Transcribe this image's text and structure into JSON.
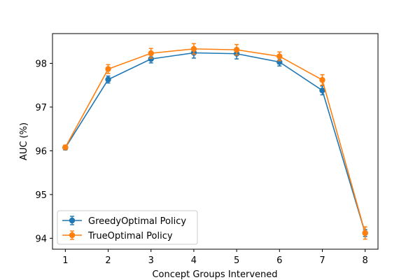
{
  "chart_data": {
    "type": "line",
    "title": "",
    "xlabel": "Concept Groups Intervened",
    "ylabel": "AUC (%)",
    "xlim": [
      0.7,
      8.3
    ],
    "ylim": [
      93.75,
      98.68
    ],
    "xticks": [
      1,
      2,
      3,
      4,
      5,
      6,
      7,
      8
    ],
    "yticks": [
      94,
      95,
      96,
      97,
      98
    ],
    "grid": false,
    "legend_position": "lower-left",
    "x": [
      1,
      2,
      3,
      4,
      5,
      6,
      7,
      8
    ],
    "series": [
      {
        "name": "GreedyOptimal Policy",
        "color": "#1f77b4",
        "marker": "circle",
        "values": [
          96.07,
          97.63,
          98.1,
          98.24,
          98.22,
          98.03,
          97.38,
          94.12
        ],
        "errors": [
          0.05,
          0.08,
          0.09,
          0.12,
          0.12,
          0.09,
          0.1,
          0.08
        ]
      },
      {
        "name": "TrueOptimal Policy",
        "color": "#ff7f0e",
        "marker": "circle",
        "values": [
          96.08,
          97.87,
          98.23,
          98.33,
          98.31,
          98.16,
          97.62,
          94.12
        ],
        "errors": [
          0.05,
          0.1,
          0.11,
          0.12,
          0.12,
          0.1,
          0.12,
          0.14
        ]
      }
    ]
  }
}
